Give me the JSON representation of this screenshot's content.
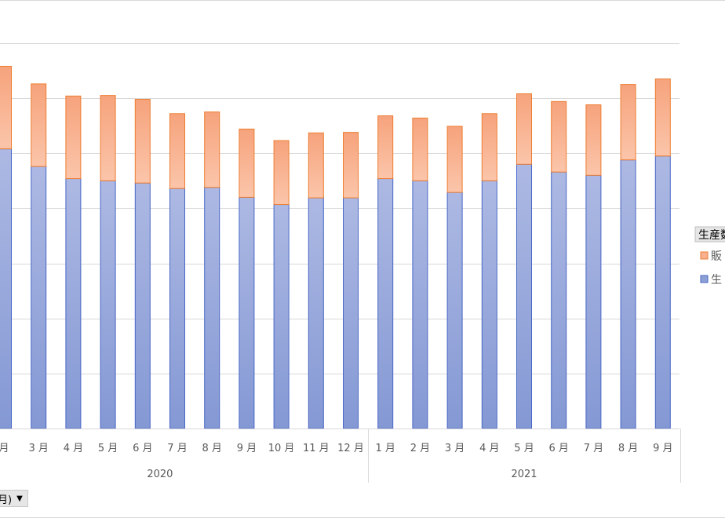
{
  "chart_data": {
    "type": "bar",
    "stacked": true,
    "categories": [
      "月",
      "3 月",
      "4 月",
      "5 月",
      "6 月",
      "7 月",
      "8 月",
      "9 月",
      "10 月",
      "11 月",
      "12 月",
      "1 月",
      "2 月",
      "3 月",
      "4 月",
      "5 月",
      "6 月",
      "7 月",
      "8 月",
      "9 月"
    ],
    "groups": [
      {
        "label": "2020",
        "count": 11
      },
      {
        "label": "2021",
        "count": 9
      }
    ],
    "series": [
      {
        "name": "生",
        "color": "#8da0d6",
        "values": [
          50.8,
          47.6,
          45.4,
          45.0,
          44.6,
          43.6,
          43.8,
          42.0,
          40.7,
          41.9,
          41.9,
          45.4,
          45.0,
          42.9,
          45.0,
          48.0,
          46.6,
          46.0,
          48.8,
          49.5
        ]
      },
      {
        "name": "販",
        "color": "#f8b08e",
        "values": [
          15.0,
          15.0,
          15.0,
          15.5,
          15.2,
          13.6,
          13.7,
          12.4,
          11.6,
          11.8,
          11.9,
          11.4,
          11.4,
          12.0,
          12.2,
          12.8,
          12.8,
          12.8,
          13.7,
          14.0
        ]
      }
    ],
    "ylim": [
      0,
      70
    ],
    "grid": true,
    "legend": {
      "title": "生産数",
      "position": "right"
    }
  },
  "filter_button": {
    "label": "月)"
  }
}
